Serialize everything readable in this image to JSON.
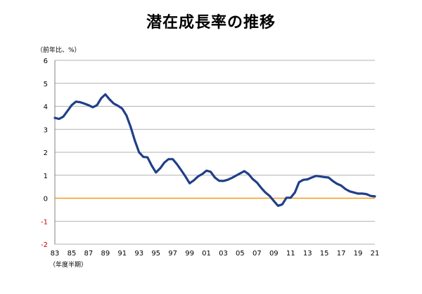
{
  "chart_data": {
    "type": "line",
    "title": "潜在成長率の推移",
    "ylabel": "（前年比、%）",
    "xlabel": "（年度半期）",
    "ylim": [
      -2,
      6
    ],
    "yticks": [
      "6",
      "5",
      "4",
      "3",
      "2",
      "1",
      "0",
      "-1",
      "-2"
    ],
    "xticks": [
      "83",
      "85",
      "87",
      "89",
      "91",
      "93",
      "95",
      "97",
      "99",
      "01",
      "03",
      "05",
      "07",
      "09",
      "11",
      "13",
      "15",
      "17",
      "19",
      "21"
    ],
    "grid": true,
    "colors": {
      "series": "#1f3f8a",
      "zero_line": "#f39a1e",
      "negative_tick": "#cc0000",
      "grid": "#999999"
    },
    "series": [
      {
        "name": "",
        "x": [
          1983.0,
          1983.5,
          1984.0,
          1984.5,
          1985.0,
          1985.5,
          1986.0,
          1986.5,
          1987.0,
          1987.5,
          1988.0,
          1988.5,
          1989.0,
          1989.5,
          1990.0,
          1990.5,
          1991.0,
          1991.5,
          1992.0,
          1992.5,
          1993.0,
          1993.5,
          1994.0,
          1994.5,
          1995.0,
          1995.5,
          1996.0,
          1996.5,
          1997.0,
          1997.5,
          1998.0,
          1998.5,
          1999.0,
          1999.5,
          2000.0,
          2000.5,
          2001.0,
          2001.5,
          2002.0,
          2002.5,
          2003.0,
          2003.5,
          2004.0,
          2004.5,
          2005.0,
          2005.5,
          2006.0,
          2006.5,
          2007.0,
          2007.5,
          2008.0,
          2008.5,
          2009.0,
          2009.5,
          2010.0,
          2010.5,
          2011.0,
          2011.5,
          2012.0,
          2012.5,
          2013.0,
          2013.5,
          2014.0,
          2014.5,
          2015.0,
          2015.5,
          2016.0,
          2016.5,
          2017.0,
          2017.5,
          2018.0,
          2018.5,
          2019.0,
          2019.5,
          2020.0,
          2020.5,
          2021.0
        ],
        "values": [
          3.5,
          3.45,
          3.55,
          3.8,
          4.05,
          4.2,
          4.18,
          4.12,
          4.05,
          3.96,
          4.05,
          4.35,
          4.52,
          4.3,
          4.12,
          4.02,
          3.9,
          3.6,
          3.1,
          2.5,
          2.0,
          1.8,
          1.78,
          1.42,
          1.12,
          1.3,
          1.55,
          1.7,
          1.7,
          1.48,
          1.22,
          0.95,
          0.65,
          0.78,
          0.95,
          1.05,
          1.2,
          1.15,
          0.9,
          0.76,
          0.75,
          0.8,
          0.88,
          0.98,
          1.08,
          1.18,
          1.05,
          0.83,
          0.68,
          0.45,
          0.25,
          0.1,
          -0.12,
          -0.33,
          -0.27,
          0.02,
          0.02,
          0.25,
          0.7,
          0.8,
          0.82,
          0.9,
          0.97,
          0.95,
          0.92,
          0.9,
          0.75,
          0.63,
          0.55,
          0.4,
          0.3,
          0.25,
          0.2,
          0.2,
          0.18,
          0.1,
          0.08
        ]
      }
    ]
  }
}
